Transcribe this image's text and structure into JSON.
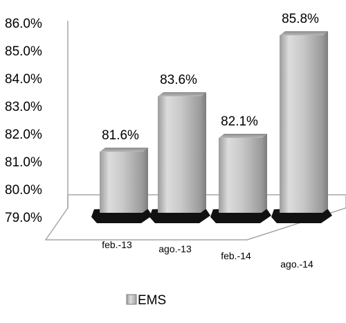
{
  "chart_data": {
    "type": "bar",
    "categories": [
      "feb.-13",
      "ago.-13",
      "feb.-14",
      "ago.-14"
    ],
    "series": [
      {
        "name": "EMS",
        "values": [
          81.6,
          83.6,
          82.1,
          85.8
        ]
      }
    ],
    "data_labels": [
      "81.6%",
      "83.6%",
      "82.1%",
      "85.8%"
    ],
    "y_ticks": [
      "79.0%",
      "80.0%",
      "81.0%",
      "82.0%",
      "83.0%",
      "84.0%",
      "85.0%",
      "86.0%"
    ],
    "ylim": [
      79,
      86
    ],
    "legend_position": "bottom",
    "style": "3d-column",
    "colors": {
      "bar": "#c4c4c4",
      "shadow": "#111111",
      "floor": "#ffffff"
    }
  }
}
